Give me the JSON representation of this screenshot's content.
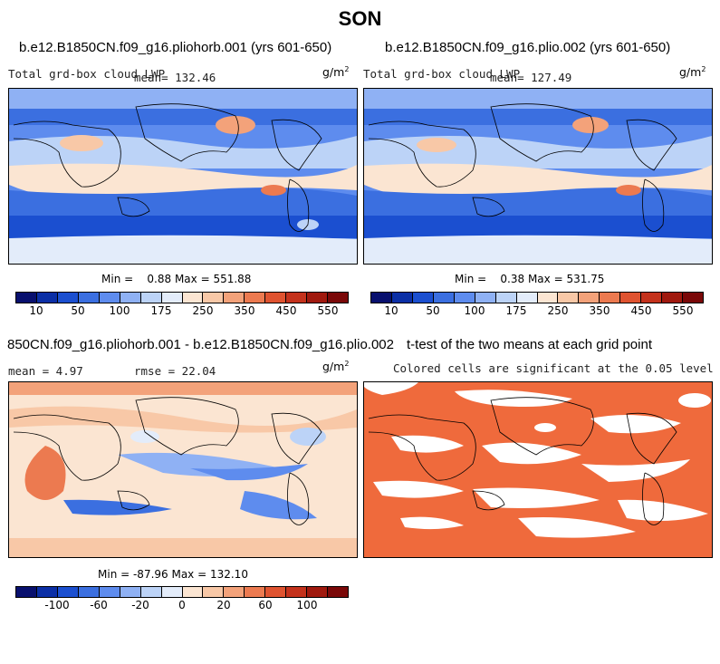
{
  "title": "SON",
  "panels": [
    {
      "title": "b.e12.B1850CN.f09_g16.pliohorb.001 (yrs 601-650)",
      "variable": "Total grd-box cloud LWP",
      "stat": "mean= 132.46",
      "units_base": "g/m",
      "units_exp": "2",
      "minmax": "Min =    0.88 Max = 551.88",
      "colorbar_ticks": [
        "10",
        "50",
        "100",
        "175",
        "250",
        "350",
        "450",
        "550"
      ]
    },
    {
      "title": "b.e12.B1850CN.f09_g16.plio.002 (yrs 601-650)",
      "variable": "Total grd-box cloud LWP",
      "stat": "mean= 127.49",
      "units_base": "g/m",
      "units_exp": "2",
      "minmax": "Min =    0.38 Max = 531.75",
      "colorbar_ticks": [
        "10",
        "50",
        "100",
        "175",
        "250",
        "350",
        "450",
        "550"
      ]
    },
    {
      "title": "850CN.f09_g16.pliohorb.001 - b.e12.B1850CN.f09_g16.plio.002",
      "stat_mean": "mean =    4.97",
      "stat_rmse": "rmse =   22.04",
      "units_base": "g/m",
      "units_exp": "2",
      "minmax": "Min = -87.96 Max = 132.10",
      "colorbar_ticks": [
        "-100",
        "-60",
        "-20",
        "0",
        "20",
        "60",
        "100"
      ]
    },
    {
      "title": "t-test of the two means at each grid point",
      "subtitle": "Colored cells are significant at the 0.05 level",
      "sig_color": "#ef6a3c"
    }
  ],
  "colorbar_abs": [
    "#08106e",
    "#0b2fa6",
    "#1b4fd0",
    "#3b6fe0",
    "#5e8cee",
    "#8fb1f4",
    "#bcd3f7",
    "#e3ecfa",
    "#fbe5d2",
    "#f8c8a7",
    "#f3a27a",
    "#ec7a50",
    "#df5330",
    "#c4321c",
    "#a0190e",
    "#7a0808"
  ],
  "colorbar_diff": [
    "#08106e",
    "#0b2fa6",
    "#1b4fd0",
    "#3b6fe0",
    "#5e8cee",
    "#8fb1f4",
    "#bcd3f7",
    "#e3ecfa",
    "#fbe5d2",
    "#f8c8a7",
    "#f3a27a",
    "#ec7a50",
    "#df5330",
    "#c4321c",
    "#a0190e",
    "#7a0808"
  ]
}
